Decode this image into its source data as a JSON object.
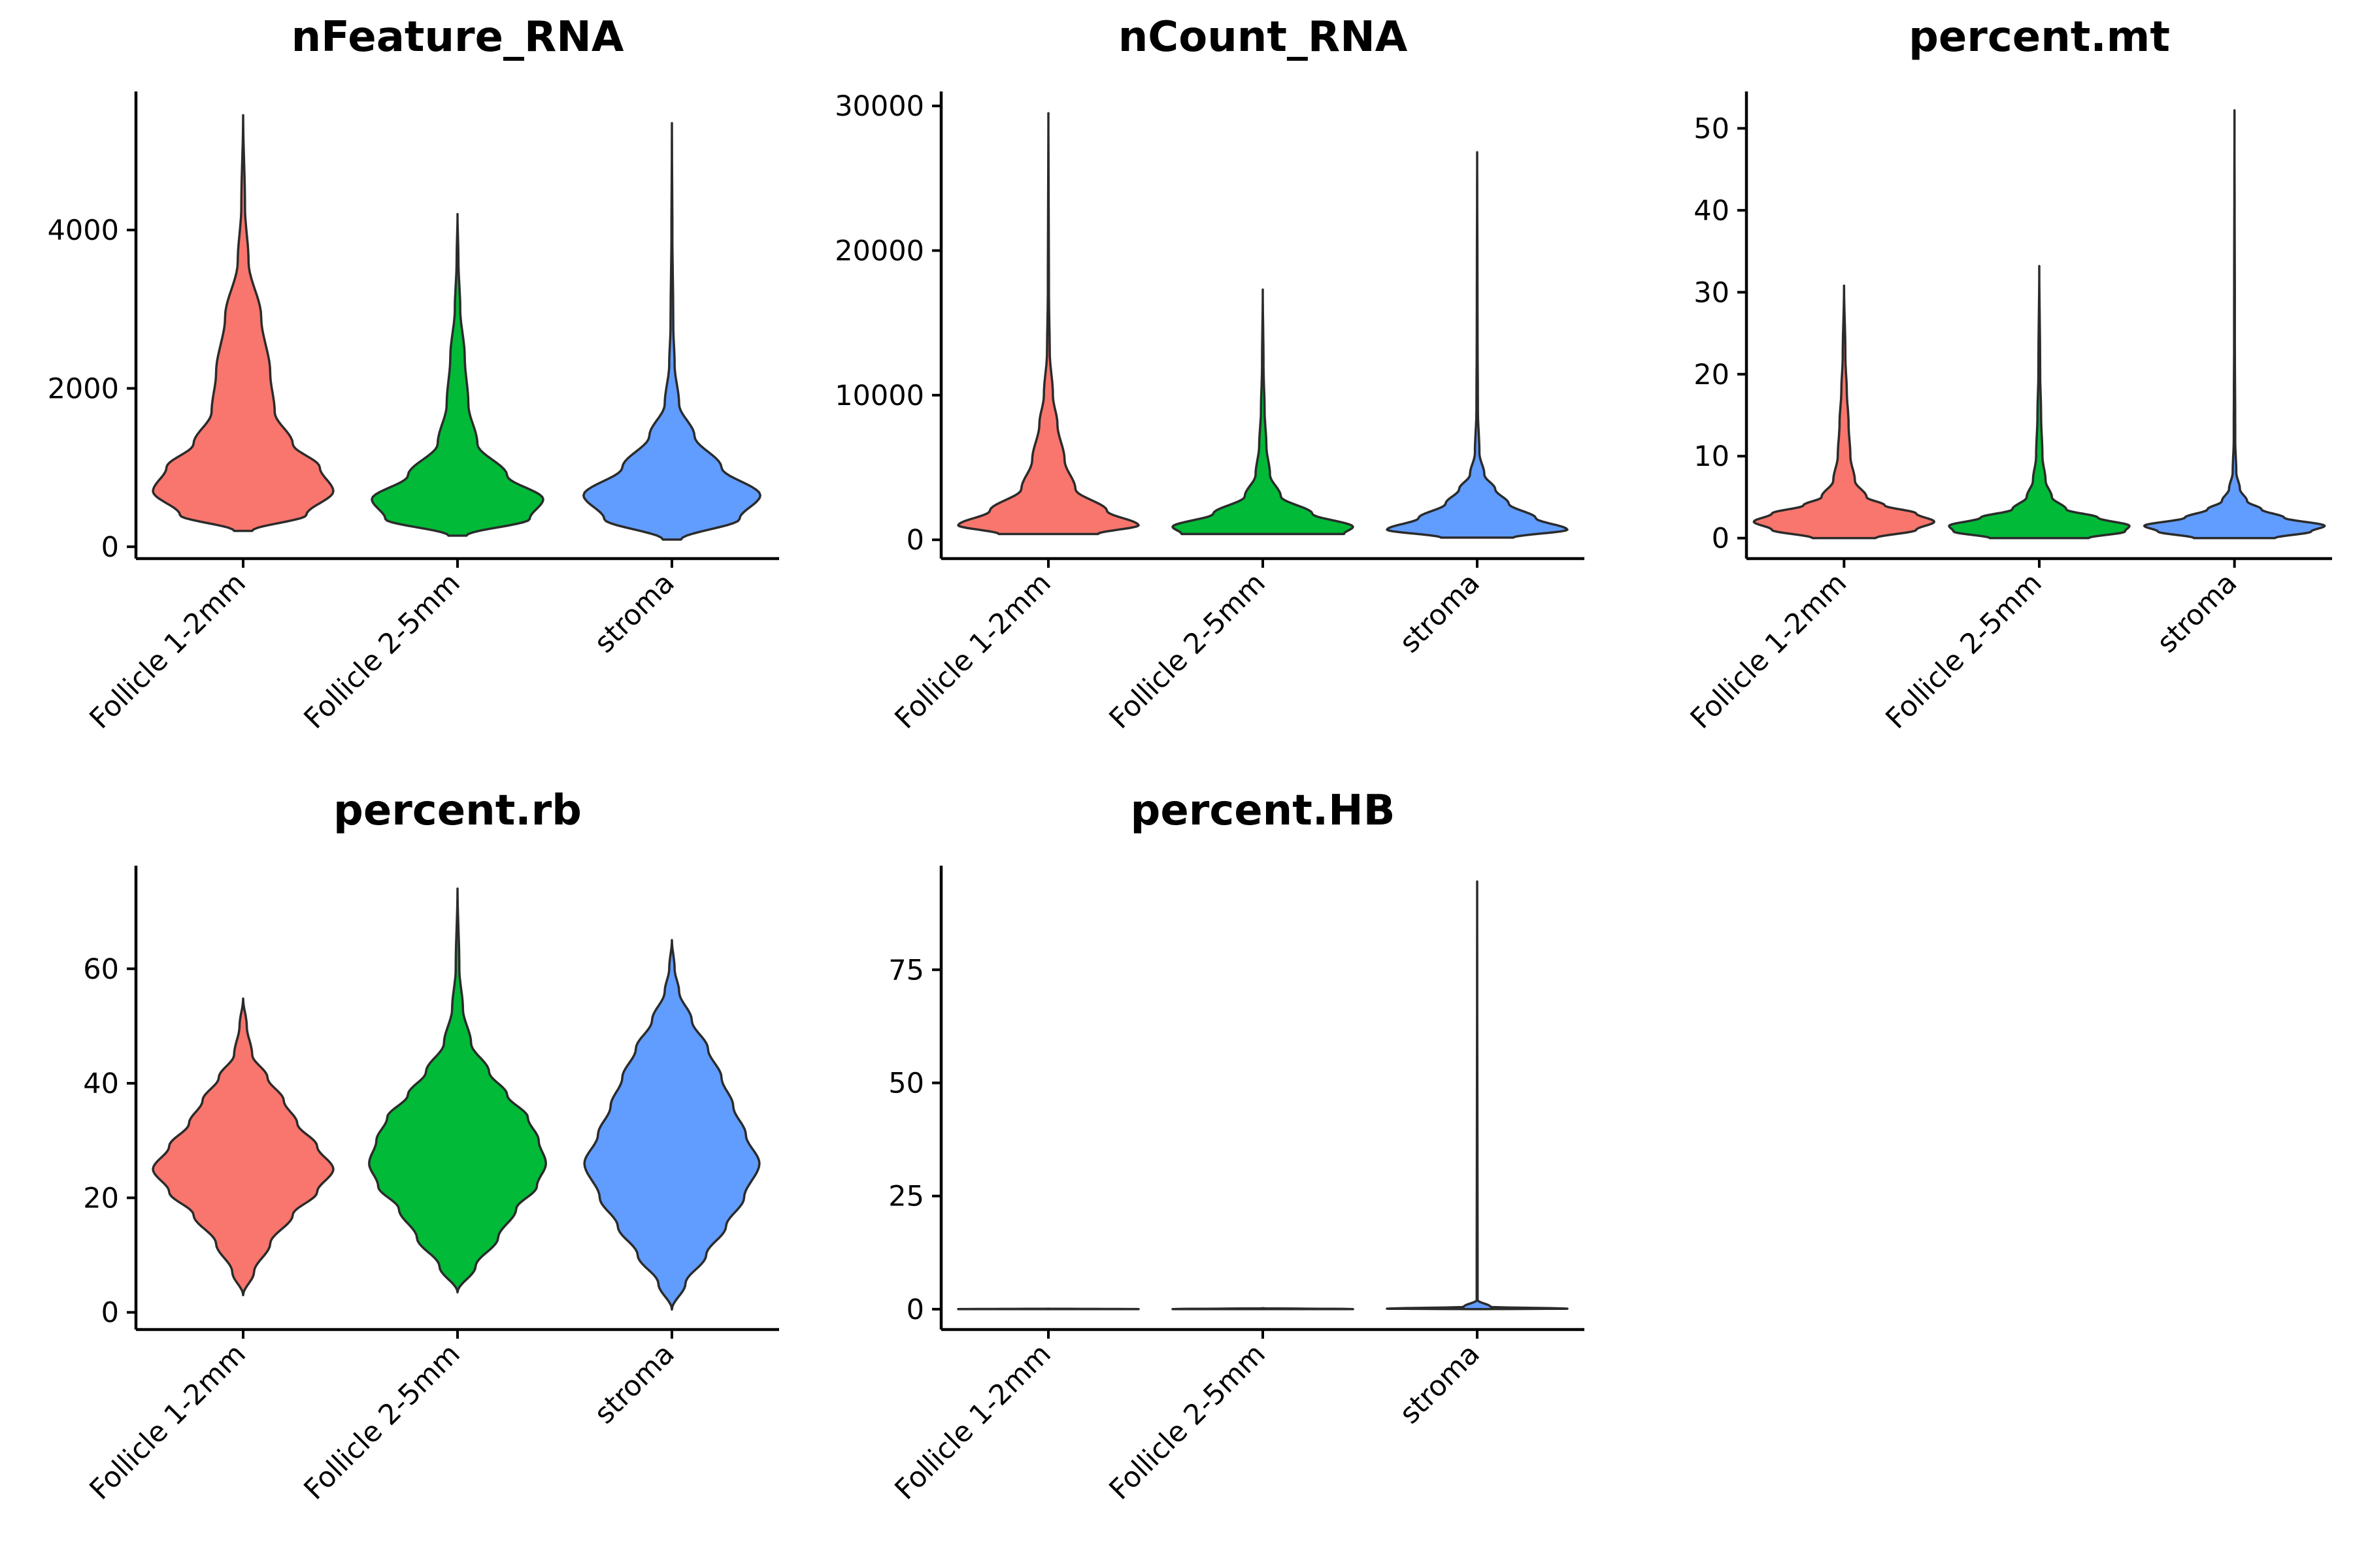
{
  "colors": {
    "Follicle 1-2mm": "#F8766D",
    "Follicle 2-5mm": "#00BA38",
    "stroma": "#619CFF"
  },
  "chart_data": [
    {
      "type": "violin",
      "title": "nFeature_RNA",
      "categories": [
        "Follicle 1-2mm",
        "Follicle 2-5mm",
        "stroma"
      ],
      "ylim": [
        -150,
        5750
      ],
      "yticks": [
        0,
        2000,
        4000
      ],
      "ytick_labels": [
        "0",
        "2000",
        "4000"
      ],
      "series": [
        {
          "category": "Follicle 1-2mm",
          "min": 200,
          "max": 5450,
          "profile": [
            [
              200,
              0.1
            ],
            [
              400,
              0.7
            ],
            [
              700,
              1.0
            ],
            [
              1000,
              0.85
            ],
            [
              1300,
              0.55
            ],
            [
              1700,
              0.35
            ],
            [
              2200,
              0.3
            ],
            [
              2900,
              0.2
            ],
            [
              3600,
              0.06
            ],
            [
              4300,
              0.02
            ],
            [
              5450,
              0.0
            ]
          ]
        },
        {
          "category": "Follicle 2-5mm",
          "min": 140,
          "max": 4200,
          "profile": [
            [
              140,
              0.1
            ],
            [
              350,
              0.8
            ],
            [
              600,
              0.95
            ],
            [
              900,
              0.55
            ],
            [
              1300,
              0.22
            ],
            [
              1800,
              0.12
            ],
            [
              2400,
              0.08
            ],
            [
              3000,
              0.03
            ],
            [
              3600,
              0.01
            ],
            [
              4200,
              0.0
            ]
          ]
        },
        {
          "category": "stroma",
          "min": 90,
          "max": 5350,
          "profile": [
            [
              90,
              0.1
            ],
            [
              350,
              0.75
            ],
            [
              650,
              0.98
            ],
            [
              1000,
              0.55
            ],
            [
              1400,
              0.25
            ],
            [
              1800,
              0.08
            ],
            [
              2300,
              0.03
            ],
            [
              2800,
              0.015
            ],
            [
              4000,
              0.005
            ],
            [
              5350,
              0.0
            ]
          ]
        }
      ]
    },
    {
      "type": "violin",
      "title": "nCount_RNA",
      "categories": [
        "Follicle 1-2mm",
        "Follicle 2-5mm",
        "stroma"
      ],
      "ylim": [
        -1300,
        31000
      ],
      "yticks": [
        0,
        10000,
        20000,
        30000
      ],
      "ytick_labels": [
        "0",
        "10000",
        "20000",
        "30000"
      ],
      "series": [
        {
          "category": "Follicle 1-2mm",
          "min": 400,
          "max": 29500,
          "profile": [
            [
              400,
              0.55
            ],
            [
              1000,
              1.0
            ],
            [
              2000,
              0.65
            ],
            [
              3500,
              0.3
            ],
            [
              5500,
              0.18
            ],
            [
              8000,
              0.1
            ],
            [
              10000,
              0.05
            ],
            [
              13000,
              0.015
            ],
            [
              17000,
              0.006
            ],
            [
              29500,
              0.0
            ]
          ]
        },
        {
          "category": "Follicle 2-5mm",
          "min": 400,
          "max": 17300,
          "profile": [
            [
              400,
              0.9
            ],
            [
              900,
              1.0
            ],
            [
              1800,
              0.55
            ],
            [
              3000,
              0.2
            ],
            [
              4500,
              0.08
            ],
            [
              6500,
              0.04
            ],
            [
              9000,
              0.02
            ],
            [
              12000,
              0.008
            ],
            [
              17300,
              0.0
            ]
          ]
        },
        {
          "category": "stroma",
          "min": 150,
          "max": 26800,
          "profile": [
            [
              150,
              0.4
            ],
            [
              700,
              1.0
            ],
            [
              1500,
              0.65
            ],
            [
              2500,
              0.35
            ],
            [
              3500,
              0.2
            ],
            [
              4500,
              0.08
            ],
            [
              6000,
              0.025
            ],
            [
              9000,
              0.008
            ],
            [
              15000,
              0.004
            ],
            [
              26800,
              0.0
            ]
          ]
        }
      ]
    },
    {
      "type": "violin",
      "title": "percent.mt",
      "categories": [
        "Follicle 1-2mm",
        "Follicle 2-5mm",
        "stroma"
      ],
      "ylim": [
        -2.5,
        54.5
      ],
      "yticks": [
        0,
        10,
        20,
        30,
        40,
        50
      ],
      "ytick_labels": [
        "0",
        "10",
        "20",
        "30",
        "40",
        "50"
      ],
      "series": [
        {
          "category": "Follicle 1-2mm",
          "min": 0,
          "max": 30.8,
          "profile": [
            [
              0,
              0.35
            ],
            [
              1,
              0.8
            ],
            [
              2,
              1.0
            ],
            [
              3,
              0.8
            ],
            [
              4,
              0.45
            ],
            [
              5,
              0.25
            ],
            [
              7,
              0.12
            ],
            [
              10,
              0.07
            ],
            [
              14,
              0.05
            ],
            [
              18,
              0.03
            ],
            [
              22,
              0.015
            ],
            [
              30.8,
              0.0
            ]
          ]
        },
        {
          "category": "Follicle 2-5mm",
          "min": 0,
          "max": 33.2,
          "profile": [
            [
              0,
              0.55
            ],
            [
              0.8,
              0.95
            ],
            [
              1.5,
              1.0
            ],
            [
              2.5,
              0.65
            ],
            [
              3.5,
              0.3
            ],
            [
              5,
              0.14
            ],
            [
              7,
              0.07
            ],
            [
              10,
              0.035
            ],
            [
              15,
              0.02
            ],
            [
              20,
              0.01
            ],
            [
              33.2,
              0.0
            ]
          ]
        },
        {
          "category": "stroma",
          "min": 0,
          "max": 52.2,
          "profile": [
            [
              0,
              0.45
            ],
            [
              0.8,
              0.85
            ],
            [
              1.5,
              1.0
            ],
            [
              2.5,
              0.55
            ],
            [
              3.5,
              0.3
            ],
            [
              4.5,
              0.14
            ],
            [
              6,
              0.06
            ],
            [
              8,
              0.02
            ],
            [
              12,
              0.008
            ],
            [
              25,
              0.004
            ],
            [
              52.2,
              0.0
            ]
          ]
        }
      ]
    },
    {
      "type": "violin",
      "title": "percent.rb",
      "categories": [
        "Follicle 1-2mm",
        "Follicle 2-5mm",
        "stroma"
      ],
      "ylim": [
        -3,
        78
      ],
      "yticks": [
        0,
        20,
        40,
        60
      ],
      "ytick_labels": [
        "0",
        "20",
        "40",
        "60"
      ],
      "series": [
        {
          "category": "Follicle 1-2mm",
          "min": 3,
          "max": 54.8,
          "profile": [
            [
              3,
              0.0
            ],
            [
              7,
              0.12
            ],
            [
              12,
              0.3
            ],
            [
              17,
              0.55
            ],
            [
              21,
              0.82
            ],
            [
              25,
              1.0
            ],
            [
              29,
              0.82
            ],
            [
              33,
              0.6
            ],
            [
              37,
              0.45
            ],
            [
              41,
              0.27
            ],
            [
              45,
              0.1
            ],
            [
              50,
              0.04
            ],
            [
              54.8,
              0.0
            ]
          ]
        },
        {
          "category": "Follicle 2-5mm",
          "min": 3.5,
          "max": 74,
          "profile": [
            [
              3.5,
              0.0
            ],
            [
              8,
              0.2
            ],
            [
              13,
              0.45
            ],
            [
              18,
              0.65
            ],
            [
              22,
              0.88
            ],
            [
              26,
              0.98
            ],
            [
              30,
              0.9
            ],
            [
              34,
              0.78
            ],
            [
              38,
              0.55
            ],
            [
              42,
              0.35
            ],
            [
              47,
              0.15
            ],
            [
              53,
              0.06
            ],
            [
              60,
              0.02
            ],
            [
              74,
              0.0
            ]
          ]
        },
        {
          "category": "stroma",
          "min": 0.5,
          "max": 65,
          "profile": [
            [
              0.5,
              0.0
            ],
            [
              5,
              0.15
            ],
            [
              10,
              0.38
            ],
            [
              15,
              0.6
            ],
            [
              20,
              0.8
            ],
            [
              26,
              0.97
            ],
            [
              31,
              0.82
            ],
            [
              36,
              0.68
            ],
            [
              41,
              0.55
            ],
            [
              46,
              0.4
            ],
            [
              51,
              0.22
            ],
            [
              56,
              0.08
            ],
            [
              60,
              0.03
            ],
            [
              65,
              0.0
            ]
          ]
        }
      ]
    },
    {
      "type": "violin",
      "title": "percent.HB",
      "categories": [
        "Follicle 1-2mm",
        "Follicle 2-5mm",
        "stroma"
      ],
      "ylim": [
        -4.5,
        98
      ],
      "yticks": [
        0,
        25,
        50,
        75
      ],
      "ytick_labels": [
        "0",
        "25",
        "50",
        "75"
      ],
      "series": [
        {
          "category": "Follicle 1-2mm",
          "min": 0,
          "max": 0.1,
          "profile": [
            [
              0,
              0.0
            ],
            [
              0.02,
              1.0
            ],
            [
              0.1,
              0.0
            ]
          ]
        },
        {
          "category": "Follicle 2-5mm",
          "min": 0,
          "max": 0.2,
          "profile": [
            [
              0,
              0.0
            ],
            [
              0.02,
              1.0
            ],
            [
              0.2,
              0.0
            ]
          ]
        },
        {
          "category": "stroma",
          "min": 0,
          "max": 94.5,
          "profile": [
            [
              0,
              0.0
            ],
            [
              0.1,
              1.0
            ],
            [
              0.5,
              0.15
            ],
            [
              2,
              0.005
            ],
            [
              94.5,
              0.0
            ]
          ]
        }
      ]
    }
  ]
}
